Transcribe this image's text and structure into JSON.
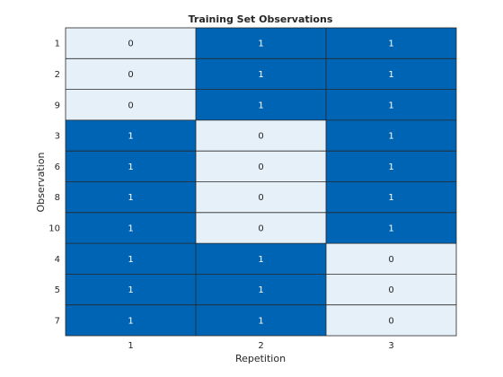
{
  "chart_data": {
    "type": "heatmap",
    "title": "Training Set Observations",
    "xlabel": "Repetition",
    "ylabel": "Observation",
    "x_categories": [
      "1",
      "2",
      "3"
    ],
    "y_categories": [
      "1",
      "2",
      "9",
      "3",
      "6",
      "8",
      "10",
      "4",
      "5",
      "7"
    ],
    "values": [
      [
        0,
        1,
        1
      ],
      [
        0,
        1,
        1
      ],
      [
        0,
        1,
        1
      ],
      [
        1,
        0,
        1
      ],
      [
        1,
        0,
        1
      ],
      [
        1,
        0,
        1
      ],
      [
        1,
        0,
        1
      ],
      [
        1,
        1,
        0
      ],
      [
        1,
        1,
        0
      ],
      [
        1,
        1,
        0
      ]
    ],
    "colormap": {
      "0": "#e6f0f9",
      "1": "#0064b4"
    },
    "cell_text_colors": {
      "0": "#262626",
      "1": "#ffffff"
    },
    "grid_color": "#262626",
    "text_color": "#262626"
  }
}
